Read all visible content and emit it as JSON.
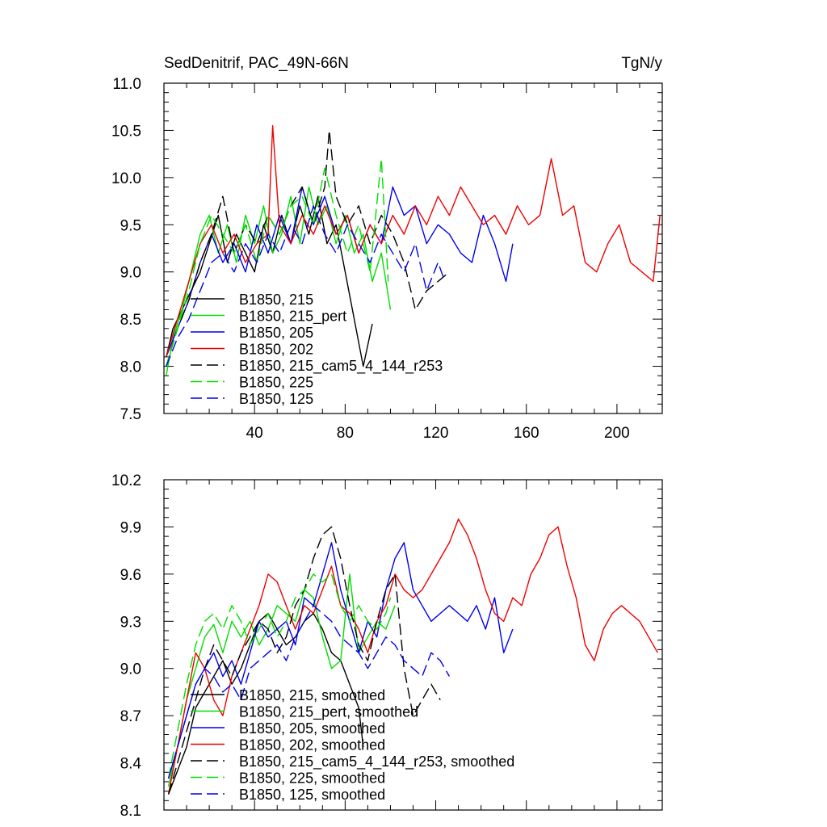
{
  "header": {
    "title": "SedDenitrif, PAC_49N-66N",
    "units": "TgN/y"
  },
  "colors": {
    "black": "#000000",
    "green": "#00dd00",
    "blue": "#0000ee",
    "red": "#ee0000"
  },
  "chart_data": [
    {
      "type": "line",
      "title": "SedDenitrif, PAC_49N-66N",
      "units": "TgN/y",
      "xlim": [
        0,
        220
      ],
      "ylim": [
        7.5,
        11.0
      ],
      "x_ticks": [
        40,
        80,
        120,
        160,
        200
      ],
      "y_ticks": [
        "7.5",
        "8.0",
        "8.5",
        "9.0",
        "9.5",
        "10.0",
        "10.5",
        "11.0"
      ],
      "legend_position": "lower-left",
      "series": [
        {
          "name": "B1850, 215",
          "color": "#000000",
          "dash": "solid",
          "x": [
            1,
            4,
            8,
            12,
            16,
            20,
            24,
            28,
            32,
            36,
            40,
            44,
            48,
            52,
            56,
            60,
            64,
            68,
            72,
            76,
            80,
            84,
            88,
            92
          ],
          "y": [
            8.1,
            8.4,
            8.6,
            8.8,
            9.0,
            9.3,
            9.6,
            9.1,
            9.4,
            9.2,
            9.0,
            9.5,
            9.2,
            9.6,
            9.3,
            9.7,
            9.4,
            9.8,
            9.3,
            9.5,
            9.0,
            8.5,
            8.0,
            8.45
          ]
        },
        {
          "name": "B1850, 215_pert",
          "color": "#00dd00",
          "dash": "solid",
          "x": [
            1,
            4,
            8,
            12,
            16,
            20,
            24,
            28,
            32,
            36,
            40,
            44,
            48,
            52,
            56,
            60,
            64,
            68,
            72,
            76,
            80,
            84,
            88,
            92,
            96,
            100
          ],
          "y": [
            7.9,
            8.3,
            8.6,
            9.0,
            9.4,
            9.6,
            9.2,
            9.5,
            9.1,
            9.6,
            9.3,
            9.7,
            9.2,
            9.4,
            9.8,
            9.3,
            9.9,
            9.5,
            9.7,
            9.3,
            9.6,
            9.2,
            9.4,
            8.9,
            9.2,
            8.6
          ]
        },
        {
          "name": "B1850, 205",
          "color": "#0000ee",
          "dash": "solid",
          "x": [
            1,
            6,
            11,
            16,
            21,
            26,
            31,
            36,
            41,
            46,
            51,
            56,
            61,
            66,
            71,
            76,
            81,
            86,
            91,
            96,
            101,
            106,
            111,
            116,
            121,
            126,
            131,
            136,
            141,
            146,
            151,
            154
          ],
          "y": [
            8.1,
            8.4,
            8.7,
            9.1,
            9.4,
            9.1,
            9.3,
            9.0,
            9.5,
            9.2,
            9.6,
            9.3,
            9.9,
            9.5,
            9.8,
            9.4,
            9.6,
            9.2,
            9.5,
            9.3,
            9.9,
            9.6,
            9.7,
            9.3,
            9.5,
            9.4,
            9.2,
            9.1,
            9.6,
            9.3,
            8.9,
            9.3
          ]
        },
        {
          "name": "B1850, 202",
          "color": "#ee0000",
          "dash": "solid",
          "x": [
            1,
            6,
            11,
            16,
            21,
            26,
            31,
            36,
            41,
            46,
            48,
            51,
            56,
            61,
            66,
            71,
            76,
            81,
            86,
            91,
            96,
            101,
            106,
            111,
            116,
            121,
            126,
            131,
            136,
            141,
            146,
            151,
            156,
            161,
            166,
            171,
            176,
            181,
            186,
            191,
            196,
            201,
            206,
            211,
            216,
            219
          ],
          "y": [
            8.1,
            8.5,
            8.9,
            9.3,
            9.5,
            9.2,
            9.4,
            9.1,
            9.3,
            9.4,
            10.55,
            9.5,
            9.3,
            9.6,
            9.4,
            9.7,
            9.4,
            9.6,
            9.2,
            9.5,
            9.3,
            9.6,
            9.4,
            9.7,
            9.5,
            9.8,
            9.6,
            9.9,
            9.7,
            9.5,
            9.6,
            9.4,
            9.7,
            9.5,
            9.6,
            10.2,
            9.6,
            9.7,
            9.1,
            9.0,
            9.3,
            9.5,
            9.1,
            9.0,
            8.9,
            9.6
          ]
        },
        {
          "name": "B1850, 215_cam5_4_144_r253",
          "color": "#000000",
          "dash": "dashed",
          "x": [
            1,
            6,
            11,
            16,
            21,
            26,
            31,
            36,
            41,
            46,
            51,
            56,
            61,
            66,
            71,
            73,
            76,
            81,
            86,
            91,
            96,
            101,
            106,
            111,
            116,
            121,
            126
          ],
          "y": [
            8.0,
            8.4,
            8.7,
            9.1,
            9.4,
            9.8,
            9.2,
            9.5,
            9.3,
            9.6,
            9.4,
            9.7,
            9.9,
            9.5,
            9.9,
            10.5,
            9.8,
            9.5,
            9.7,
            9.3,
            9.6,
            9.4,
            9.1,
            8.6,
            8.8,
            8.9,
            9.0
          ]
        },
        {
          "name": "B1850, 225",
          "color": "#00dd00",
          "dash": "dashed",
          "x": [
            1,
            6,
            11,
            16,
            21,
            26,
            31,
            36,
            41,
            46,
            51,
            56,
            61,
            66,
            71,
            76,
            81,
            86,
            91,
            96,
            99
          ],
          "y": [
            8.0,
            8.4,
            8.8,
            9.3,
            9.6,
            9.4,
            9.2,
            9.5,
            9.1,
            9.6,
            9.4,
            9.7,
            9.8,
            9.5,
            10.1,
            9.6,
            9.2,
            9.5,
            9.0,
            10.2,
            8.9
          ]
        },
        {
          "name": "B1850, 125",
          "color": "#0000ee",
          "dash": "dashed",
          "x": [
            1,
            6,
            11,
            16,
            21,
            26,
            31,
            36,
            41,
            46,
            51,
            56,
            61,
            66,
            71,
            76,
            81,
            86,
            91,
            96,
            101,
            106,
            111,
            116,
            121,
            124
          ],
          "y": [
            8.0,
            8.3,
            8.5,
            8.8,
            9.1,
            9.2,
            9.0,
            9.3,
            9.1,
            9.4,
            9.2,
            9.5,
            9.3,
            9.7,
            9.4,
            9.2,
            9.5,
            9.3,
            9.1,
            9.4,
            9.2,
            9.0,
            9.3,
            8.8,
            9.1,
            8.9
          ]
        }
      ]
    },
    {
      "type": "line",
      "xlim": [
        0,
        220
      ],
      "ylim": [
        8.1,
        10.2
      ],
      "x_ticks": [
        40,
        80,
        120,
        160,
        200
      ],
      "y_ticks": [
        "8.1",
        "8.4",
        "8.7",
        "9.0",
        "9.3",
        "9.6",
        "9.9",
        "10.2"
      ],
      "legend_position": "lower-left",
      "series": [
        {
          "name": "B1850, 215, smoothed",
          "color": "#000000",
          "dash": "solid",
          "x": [
            2,
            6,
            10,
            14,
            18,
            22,
            26,
            30,
            34,
            38,
            42,
            46,
            50,
            54,
            58,
            62,
            66,
            70,
            74,
            78,
            82,
            86,
            88
          ],
          "y": [
            8.2,
            8.35,
            8.5,
            8.75,
            8.85,
            8.95,
            9.05,
            8.9,
            9.0,
            9.15,
            9.3,
            9.35,
            9.25,
            9.15,
            9.2,
            9.3,
            9.35,
            9.25,
            9.1,
            9.05,
            8.9,
            8.75,
            8.5
          ]
        },
        {
          "name": "B1850, 215_pert, smoothed",
          "color": "#00dd00",
          "dash": "solid",
          "x": [
            2,
            6,
            10,
            14,
            18,
            22,
            26,
            30,
            34,
            38,
            42,
            46,
            50,
            54,
            58,
            62,
            66,
            70,
            74,
            78,
            82,
            86,
            90,
            94,
            98,
            102
          ],
          "y": [
            8.25,
            8.5,
            8.8,
            9.0,
            9.2,
            9.28,
            9.1,
            9.3,
            9.2,
            9.3,
            9.15,
            9.25,
            9.4,
            9.35,
            9.3,
            9.5,
            9.45,
            9.2,
            9.0,
            9.05,
            9.6,
            9.1,
            9.2,
            9.3,
            9.25,
            9.4
          ]
        },
        {
          "name": "B1850, 205, smoothed",
          "color": "#0000ee",
          "dash": "solid",
          "x": [
            2,
            6,
            10,
            14,
            18,
            22,
            26,
            30,
            34,
            38,
            42,
            46,
            50,
            54,
            58,
            62,
            66,
            70,
            74,
            78,
            82,
            86,
            90,
            94,
            98,
            102,
            106,
            110,
            114,
            118,
            122,
            126,
            130,
            134,
            138,
            142,
            146,
            150,
            154
          ],
          "y": [
            8.3,
            8.5,
            8.7,
            8.9,
            9.0,
            9.1,
            8.95,
            9.05,
            8.9,
            9.1,
            9.3,
            9.2,
            9.25,
            9.3,
            9.15,
            9.45,
            9.4,
            9.6,
            9.8,
            9.5,
            9.3,
            9.1,
            9.3,
            9.2,
            9.5,
            9.7,
            9.8,
            9.5,
            9.4,
            9.3,
            9.35,
            9.4,
            9.35,
            9.3,
            9.4,
            9.25,
            9.45,
            9.1,
            9.25
          ]
        },
        {
          "name": "B1850, 202, smoothed",
          "color": "#ee0000",
          "dash": "solid",
          "x": [
            2,
            6,
            10,
            14,
            18,
            22,
            26,
            30,
            34,
            38,
            42,
            46,
            50,
            54,
            58,
            62,
            66,
            70,
            74,
            78,
            82,
            86,
            90,
            94,
            98,
            102,
            106,
            110,
            114,
            118,
            122,
            126,
            130,
            134,
            138,
            142,
            146,
            150,
            154,
            158,
            162,
            166,
            170,
            174,
            178,
            182,
            186,
            190,
            194,
            198,
            202,
            206,
            210,
            214,
            218
          ],
          "y": [
            8.2,
            8.5,
            8.8,
            9.1,
            9.0,
            8.8,
            8.7,
            8.95,
            9.1,
            9.25,
            9.4,
            9.6,
            9.55,
            9.4,
            9.25,
            9.4,
            9.35,
            9.5,
            9.65,
            9.4,
            9.35,
            9.25,
            9.1,
            9.3,
            9.4,
            9.6,
            9.5,
            9.45,
            9.5,
            9.6,
            9.7,
            9.8,
            9.95,
            9.85,
            9.7,
            9.5,
            9.35,
            9.3,
            9.45,
            9.4,
            9.6,
            9.7,
            9.85,
            9.9,
            9.65,
            9.45,
            9.15,
            9.05,
            9.25,
            9.35,
            9.4,
            9.35,
            9.3,
            9.2,
            9.1
          ]
        },
        {
          "name": "B1850, 215_cam5_4_144_r253, smoothed",
          "color": "#000000",
          "dash": "dashed",
          "x": [
            2,
            6,
            10,
            14,
            18,
            22,
            26,
            30,
            34,
            38,
            42,
            46,
            50,
            54,
            58,
            62,
            66,
            70,
            74,
            78,
            82,
            86,
            90,
            94,
            98,
            102,
            106,
            110,
            114,
            118,
            122
          ],
          "y": [
            8.2,
            8.4,
            8.6,
            8.8,
            9.0,
            9.15,
            9.05,
            8.95,
            9.1,
            9.2,
            9.3,
            9.25,
            9.1,
            9.2,
            9.4,
            9.5,
            9.7,
            9.85,
            9.9,
            9.7,
            9.4,
            9.15,
            9.05,
            9.3,
            9.5,
            9.6,
            9.0,
            8.7,
            8.8,
            8.9,
            8.8
          ]
        },
        {
          "name": "B1850, 225, smoothed",
          "color": "#00dd00",
          "dash": "dashed",
          "x": [
            2,
            6,
            10,
            14,
            18,
            22,
            26,
            30,
            34,
            38,
            42,
            46,
            50,
            54,
            58,
            62,
            66,
            70,
            74,
            78,
            82,
            86,
            90,
            94,
            98,
            100
          ],
          "y": [
            8.3,
            8.6,
            8.9,
            9.15,
            9.3,
            9.35,
            9.25,
            9.4,
            9.3,
            9.15,
            9.25,
            9.35,
            9.2,
            9.3,
            9.45,
            9.5,
            9.6,
            9.55,
            9.6,
            9.4,
            9.3,
            9.4,
            9.3,
            9.25,
            9.35,
            9.45
          ]
        },
        {
          "name": "B1850, 125, smoothed",
          "color": "#0000ee",
          "dash": "dashed",
          "x": [
            2,
            6,
            10,
            14,
            18,
            22,
            26,
            30,
            34,
            38,
            42,
            46,
            50,
            54,
            58,
            62,
            66,
            70,
            74,
            78,
            82,
            86,
            90,
            94,
            98,
            102,
            106,
            110,
            114,
            118,
            122,
            126
          ],
          "y": [
            8.3,
            8.5,
            8.7,
            8.9,
            9.0,
            8.95,
            8.85,
            8.9,
            8.8,
            9.0,
            9.05,
            9.1,
            9.15,
            9.05,
            9.2,
            9.3,
            9.4,
            9.35,
            9.3,
            9.2,
            9.15,
            9.1,
            9.0,
            9.1,
            9.2,
            9.15,
            9.05,
            9.0,
            8.95,
            9.1,
            9.05,
            8.95
          ]
        }
      ]
    }
  ]
}
